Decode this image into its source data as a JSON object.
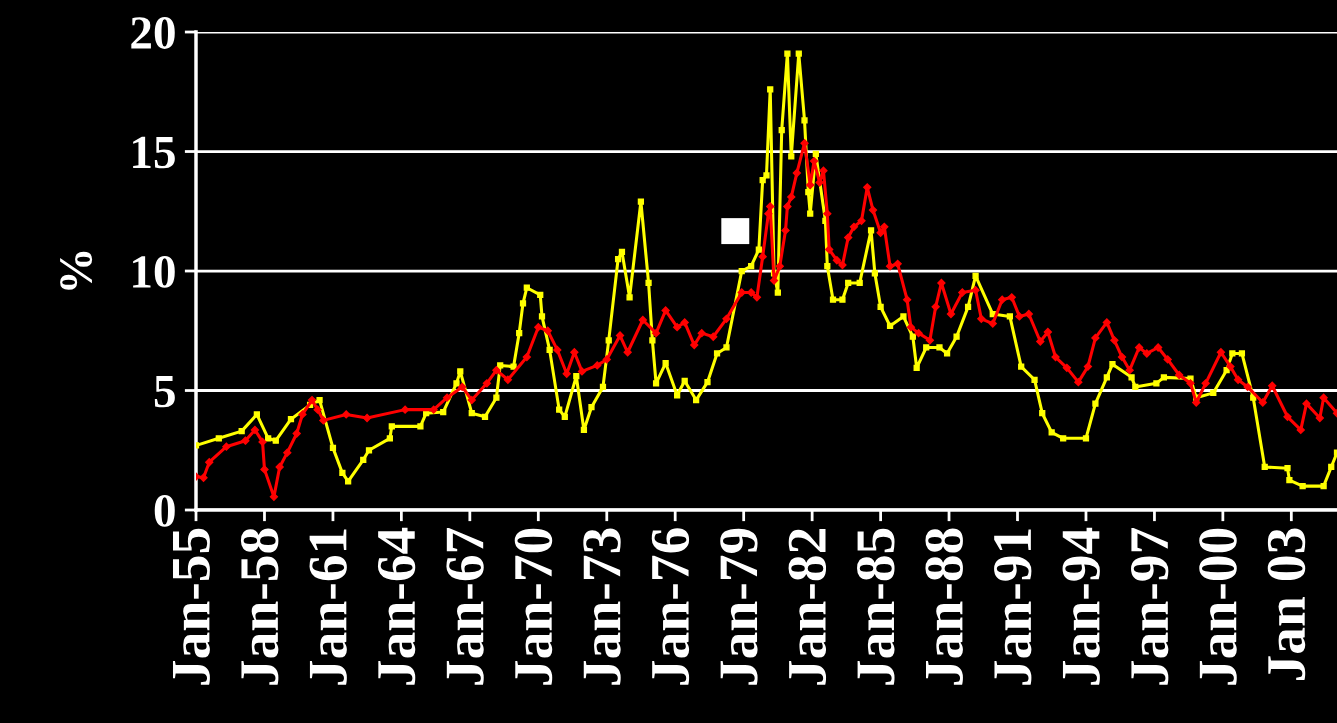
{
  "chart_data": {
    "type": "line",
    "ylabel": "%",
    "xlim": [
      "1955-01",
      "2005-01"
    ],
    "ylim": [
      0,
      20
    ],
    "yticks": [
      0,
      5,
      10,
      15,
      20
    ],
    "xticks": [
      {
        "value": "1955-01",
        "label": "Jan-55"
      },
      {
        "value": "1958-01",
        "label": "Jan-58"
      },
      {
        "value": "1961-01",
        "label": "Jan-61"
      },
      {
        "value": "1964-01",
        "label": "Jan-64"
      },
      {
        "value": "1967-01",
        "label": "Jan-67"
      },
      {
        "value": "1970-01",
        "label": "Jan-70"
      },
      {
        "value": "1973-01",
        "label": "Jan-73"
      },
      {
        "value": "1976-01",
        "label": "Jan-76"
      },
      {
        "value": "1979-01",
        "label": "Jan-79"
      },
      {
        "value": "1982-01",
        "label": "Jan-82"
      },
      {
        "value": "1985-01",
        "label": "Jan-85"
      },
      {
        "value": "1988-01",
        "label": "Jan-88"
      },
      {
        "value": "1991-01",
        "label": "Jan-91"
      },
      {
        "value": "1994-01",
        "label": "Jan-94"
      },
      {
        "value": "1997-01",
        "label": "Jan-97"
      },
      {
        "value": "2000-01",
        "label": "Jan-00"
      },
      {
        "value": "2003-01",
        "label": "Jan 03"
      }
    ],
    "grid": "y",
    "legend": false,
    "line_style": "solid",
    "series": [
      {
        "color": "#ffff00",
        "marker": "square",
        "x": [
          "1955-01",
          "1956-01",
          "1957-01",
          "1957-09",
          "1958-03",
          "1958-07",
          "1959-03",
          "1960-01",
          "1960-06",
          "1961-01",
          "1961-06",
          "1961-09",
          "1962-05",
          "1962-08",
          "1963-07",
          "1963-08",
          "1964-11",
          "1965-02",
          "1965-11",
          "1966-06",
          "1966-08",
          "1967-02",
          "1967-09",
          "1968-03",
          "1968-05",
          "1968-12",
          "1969-03",
          "1969-05",
          "1969-07",
          "1970-02",
          "1970-03",
          "1970-07",
          "1970-12",
          "1971-03",
          "1971-09",
          "1972-01",
          "1972-05",
          "1972-11",
          "1973-02",
          "1973-07",
          "1973-09",
          "1974-01",
          "1974-07",
          "1974-11",
          "1975-01",
          "1975-03",
          "1975-08",
          "1976-02",
          "1976-06",
          "1976-12",
          "1977-06",
          "1977-11",
          "1978-04",
          "1978-12",
          "1979-05",
          "1979-09",
          "1979-11",
          "1980-01",
          "1980-03",
          "1980-05",
          "1980-07",
          "1980-09",
          "1980-12",
          "1981-02",
          "1981-06",
          "1981-09",
          "1981-11",
          "1981-12",
          "1982-03",
          "1982-08",
          "1982-09",
          "1982-12",
          "1983-05",
          "1983-08",
          "1984-02",
          "1984-08",
          "1984-10",
          "1985-01",
          "1985-06",
          "1986-01",
          "1986-06",
          "1986-08",
          "1987-01",
          "1987-08",
          "1987-12",
          "1988-05",
          "1988-11",
          "1989-03",
          "1989-12",
          "1990-09",
          "1991-03",
          "1991-10",
          "1992-02",
          "1992-07",
          "1993-01",
          "1994-01",
          "1994-06",
          "1994-12",
          "1995-03",
          "1996-01",
          "1996-03",
          "1997-02",
          "1997-06",
          "1998-08",
          "1998-11",
          "1999-08",
          "2000-03",
          "2000-06",
          "2000-11",
          "2001-05",
          "2001-11",
          "2002-11",
          "2002-12",
          "2003-07",
          "2004-06",
          "2004-10",
          "2005-01"
        ],
        "values": [
          2.7,
          3.0,
          3.3,
          4.0,
          3.0,
          2.9,
          3.8,
          4.4,
          4.6,
          2.6,
          1.55,
          1.2,
          2.1,
          2.5,
          3.0,
          3.5,
          3.5,
          4.05,
          4.1,
          5.3,
          5.8,
          4.05,
          3.9,
          4.7,
          6.05,
          6.0,
          7.4,
          8.65,
          9.3,
          9.0,
          8.1,
          6.7,
          4.2,
          3.9,
          5.6,
          3.35,
          4.3,
          5.15,
          7.1,
          10.5,
          10.8,
          8.9,
          12.9,
          9.5,
          7.1,
          5.3,
          6.15,
          4.8,
          5.4,
          4.6,
          5.35,
          6.55,
          6.8,
          10.0,
          10.2,
          10.9,
          13.8,
          14.0,
          17.6,
          9.9,
          9.1,
          15.9,
          19.1,
          14.8,
          19.1,
          16.3,
          13.3,
          12.4,
          14.9,
          12.1,
          10.2,
          8.8,
          8.8,
          9.5,
          9.5,
          11.7,
          9.9,
          8.5,
          7.7,
          8.1,
          7.25,
          5.95,
          6.8,
          6.8,
          6.55,
          7.25,
          8.5,
          9.8,
          8.2,
          8.1,
          6.0,
          5.45,
          4.05,
          3.25,
          3.0,
          3.0,
          4.45,
          5.55,
          6.1,
          5.55,
          5.15,
          5.3,
          5.55,
          5.5,
          4.7,
          4.9,
          5.85,
          6.55,
          6.55,
          4.7,
          1.8,
          1.75,
          1.25,
          1.0,
          1.0,
          1.8,
          2.4
        ]
      },
      {
        "color": "#ff0000",
        "marker": "diamond",
        "x": [
          "1955-01",
          "1955-05",
          "1955-08",
          "1956-05",
          "1957-03",
          "1957-08",
          "1957-12",
          "1958-01",
          "1958-06",
          "1958-09",
          "1959-01",
          "1959-06",
          "1959-09",
          "1960-02",
          "1960-05",
          "1960-08",
          "1961-08",
          "1962-07",
          "1964-03",
          "1965-06",
          "1966-01",
          "1966-09",
          "1967-02",
          "1967-10",
          "1968-03",
          "1968-09",
          "1969-07",
          "1970-01",
          "1970-06",
          "1970-11",
          "1971-04",
          "1971-08",
          "1971-12",
          "1972-08",
          "1973-01",
          "1973-08",
          "1973-12",
          "1974-08",
          "1975-03",
          "1975-08",
          "1976-02",
          "1976-06",
          "1976-11",
          "1977-03",
          "1977-09",
          "1978-04",
          "1978-12",
          "1979-05",
          "1979-08",
          "1979-11",
          "1980-02",
          "1980-03",
          "1980-05",
          "1980-08",
          "1980-11",
          "1980-12",
          "1981-02",
          "1981-05",
          "1981-09",
          "1981-12",
          "1982-02",
          "1982-05",
          "1982-07",
          "1982-09",
          "1982-10",
          "1983-02",
          "1983-05",
          "1983-08",
          "1983-11",
          "1984-03",
          "1984-06",
          "1984-09",
          "1985-01",
          "1985-03",
          "1985-06",
          "1985-10",
          "1986-03",
          "1986-05",
          "1986-09",
          "1987-03",
          "1987-06",
          "1987-09",
          "1988-02",
          "1988-08",
          "1989-03",
          "1989-06",
          "1989-12",
          "1990-05",
          "1990-10",
          "1991-02",
          "1991-07",
          "1992-01",
          "1992-05",
          "1992-09",
          "1993-03",
          "1993-09",
          "1994-02",
          "1994-06",
          "1994-12",
          "1995-04",
          "1995-08",
          "1995-12",
          "1996-05",
          "1996-09",
          "1997-03",
          "1997-08",
          "1998-02",
          "1998-08",
          "1998-11",
          "1999-04",
          "1999-12",
          "2000-05",
          "2000-09",
          "2001-02",
          "2001-10",
          "2002-03",
          "2002-11",
          "2003-06",
          "2003-09",
          "2004-04",
          "2004-06",
          "2005-01"
        ],
        "values": [
          1.4,
          1.35,
          2.0,
          2.65,
          2.9,
          3.35,
          2.85,
          1.7,
          0.55,
          1.8,
          2.4,
          3.2,
          4.0,
          4.6,
          4.2,
          3.75,
          4.0,
          3.85,
          4.2,
          4.2,
          4.7,
          5.15,
          4.6,
          5.3,
          5.85,
          5.45,
          6.4,
          7.65,
          7.5,
          6.7,
          5.7,
          6.6,
          5.8,
          6.05,
          6.3,
          7.3,
          6.6,
          7.95,
          7.4,
          8.35,
          7.65,
          7.85,
          6.9,
          7.4,
          7.25,
          8.0,
          9.1,
          9.1,
          8.9,
          10.6,
          12.4,
          12.7,
          9.6,
          10.2,
          11.7,
          12.7,
          13.1,
          14.1,
          15.35,
          13.6,
          14.6,
          13.7,
          14.2,
          12.4,
          10.9,
          10.45,
          10.25,
          11.4,
          11.85,
          12.1,
          13.5,
          12.55,
          11.6,
          11.85,
          10.2,
          10.3,
          8.8,
          7.65,
          7.4,
          7.1,
          8.5,
          9.5,
          8.2,
          9.1,
          9.2,
          8.0,
          7.8,
          8.8,
          8.9,
          8.1,
          8.2,
          7.05,
          7.45,
          6.4,
          5.95,
          5.35,
          6.0,
          7.2,
          7.85,
          7.1,
          6.4,
          5.85,
          6.8,
          6.55,
          6.8,
          6.3,
          5.65,
          5.3,
          4.5,
          5.3,
          6.6,
          6.0,
          5.45,
          5.15,
          4.5,
          5.2,
          3.9,
          3.35,
          4.45,
          3.85,
          4.7,
          4.05
        ]
      }
    ]
  }
}
